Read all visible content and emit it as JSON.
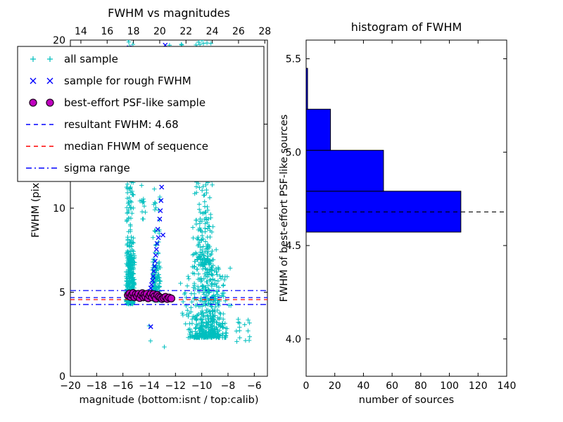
{
  "figure": {
    "background": "#ffffff"
  },
  "chart_data": [
    {
      "type": "scatter",
      "title": "FWHM vs magnitudes",
      "xlabel": "magnitude (bottom:isnt / top:calib)",
      "ylabel": "FWHM (pix)",
      "xlim": [
        -20,
        -5
      ],
      "ylim": [
        0,
        20
      ],
      "xticks": [
        -20,
        -18,
        -16,
        -14,
        -12,
        -10,
        -8,
        -6
      ],
      "yticks": [
        0,
        5,
        10,
        15,
        20
      ],
      "top_axis_ticks": [
        14,
        16,
        18,
        20,
        22,
        24,
        26,
        28
      ],
      "top_axis_lim": [
        13.2,
        28.2
      ],
      "grid": false,
      "legend_position": "upper left",
      "series": [
        {
          "name": "all sample",
          "marker": "+",
          "color": "#00bfbf",
          "clusters": [
            {
              "x0": -15.72,
              "x1": -15.18,
              "y0": 4.3,
              "y1": 20.0,
              "n": 300,
              "ybias": 2.0
            },
            {
              "x0": -15.78,
              "x1": -15.1,
              "y0": 4.4,
              "y1": 7.2,
              "n": 120,
              "ybias": 1
            },
            {
              "x0": -14.78,
              "x1": -14.2,
              "y0": 9.0,
              "y1": 11.5,
              "n": 12,
              "ybias": 1
            },
            {
              "x0": -13.72,
              "x1": -13.18,
              "y0": 4.5,
              "y1": 13.0,
              "n": 90,
              "ybias": 2.0
            },
            {
              "x0": -13.78,
              "x1": -13.15,
              "y0": 4.5,
              "y1": 6.6,
              "n": 60,
              "ybias": 1
            },
            {
              "x0": -11.7,
              "x1": -7.3,
              "y0": 2.3,
              "y1": 6.6,
              "n": 480,
              "ybias": 1.8,
              "xbell": true
            },
            {
              "x0": -10.95,
              "x1": -8.75,
              "y0": 6.6,
              "y1": 20.0,
              "n": 270,
              "ybias": 1.6,
              "xbell": true
            },
            {
              "x0": -7.5,
              "x1": -6.1,
              "y0": 2.0,
              "y1": 3.4,
              "n": 14,
              "ybias": 1
            },
            {
              "x0": -12.65,
              "x1": -11.15,
              "y0": 18.3,
              "y1": 20.0,
              "n": 10,
              "ybias": 1
            }
          ],
          "extra_points": [
            [
              -13.9,
              2.1
            ],
            [
              -12.85,
              1.75
            ],
            [
              -6.35,
              2.35
            ],
            [
              -14.0,
              3.0
            ]
          ]
        },
        {
          "name": "sample for rough FWHM",
          "marker": "x",
          "color": "#0000ff",
          "points": [
            [
              -15.52,
              19.55
            ],
            [
              -12.78,
              19.7
            ],
            [
              -13.05,
              11.25
            ],
            [
              -13.1,
              10.45
            ],
            [
              -13.15,
              9.85
            ],
            [
              -13.2,
              9.35
            ],
            [
              -13.35,
              8.75
            ],
            [
              -12.95,
              8.4
            ],
            [
              -13.3,
              8.25
            ],
            [
              -13.4,
              7.9
            ],
            [
              -13.45,
              7.55
            ],
            [
              -13.5,
              7.2
            ],
            [
              -13.55,
              6.85
            ],
            [
              -13.6,
              6.55
            ],
            [
              -13.65,
              6.25
            ],
            [
              -13.7,
              5.95
            ],
            [
              -13.75,
              5.7
            ],
            [
              -13.82,
              5.45
            ],
            [
              -13.88,
              5.25
            ],
            [
              -13.95,
              5.05
            ],
            [
              -14.02,
              4.92
            ],
            [
              -14.1,
              4.82
            ],
            [
              -13.88,
              2.95
            ]
          ]
        },
        {
          "name": "best-effort PSF-like sample",
          "marker": "o",
          "color": "#bf00bf",
          "edge_color": "#220022",
          "points": [
            [
              -15.62,
              4.82
            ],
            [
              -15.5,
              4.92
            ],
            [
              -15.42,
              4.72
            ],
            [
              -15.32,
              4.85
            ],
            [
              -15.22,
              4.95
            ],
            [
              -15.12,
              4.7
            ],
            [
              -15.02,
              4.88
            ],
            [
              -14.92,
              4.76
            ],
            [
              -14.82,
              4.9
            ],
            [
              -14.72,
              4.66
            ],
            [
              -14.62,
              4.84
            ],
            [
              -14.52,
              4.94
            ],
            [
              -14.44,
              4.7
            ],
            [
              -14.36,
              4.86
            ],
            [
              -14.28,
              4.74
            ],
            [
              -14.18,
              4.9
            ],
            [
              -14.08,
              4.64
            ],
            [
              -13.98,
              4.8
            ],
            [
              -13.88,
              4.9
            ],
            [
              -13.78,
              4.7
            ],
            [
              -13.68,
              4.88
            ],
            [
              -13.58,
              4.76
            ],
            [
              -13.48,
              4.62
            ],
            [
              -13.38,
              4.84
            ],
            [
              -13.26,
              4.74
            ],
            [
              -13.14,
              4.68
            ],
            [
              -13.02,
              4.6
            ],
            [
              -12.9,
              4.66
            ],
            [
              -12.76,
              4.72
            ],
            [
              -12.62,
              4.6
            ],
            [
              -12.48,
              4.68
            ],
            [
              -12.32,
              4.63
            ]
          ]
        }
      ],
      "hlines": [
        {
          "name": "resultant FWHM: 4.68",
          "y": [
            4.68
          ],
          "color": "#0000ff",
          "style": "dashed"
        },
        {
          "name": "median FHWM of sequence",
          "y": [
            4.56
          ],
          "color": "#ff0000",
          "style": "dashed"
        },
        {
          "name": "sigma range",
          "y": [
            4.27,
            5.1
          ],
          "color": "#0000ff",
          "style": "dashdot"
        }
      ],
      "legend_entries": [
        {
          "label": "all sample",
          "type": "plus",
          "color": "#00bfbf"
        },
        {
          "label": "sample for rough FWHM",
          "type": "x",
          "color": "#0000ff"
        },
        {
          "label": "best-effort PSF-like sample",
          "type": "circle",
          "color": "#bf00bf",
          "edge_color": "#220022"
        },
        {
          "label": "resultant FWHM: 4.68",
          "type": "dashed",
          "color": "#0000ff"
        },
        {
          "label": "median FHWM of sequence",
          "type": "dashed",
          "color": "#ff0000"
        },
        {
          "label": "sigma range",
          "type": "dashdot",
          "color": "#0000ff"
        }
      ]
    },
    {
      "type": "bar",
      "orientation": "horizontal",
      "title": "histogram of FWHM",
      "xlabel": "number of sources",
      "ylabel": "FWHM of best-effort PSF-like sources",
      "xlim": [
        0,
        140
      ],
      "ylim": [
        3.8,
        5.6
      ],
      "xticks": [
        0,
        20,
        40,
        60,
        80,
        100,
        120,
        140
      ],
      "yticks": [
        4.0,
        4.5,
        5.0,
        5.5
      ],
      "grid": false,
      "bin_edges": [
        4.572,
        4.791,
        5.01,
        5.23,
        5.449
      ],
      "counts": [
        108,
        54,
        17,
        1
      ],
      "bar_color": "#0000ff",
      "bar_edge_color": "#000000",
      "dashed_line": {
        "y": 4.68,
        "color": "#000000",
        "style": "dashed"
      }
    }
  ]
}
